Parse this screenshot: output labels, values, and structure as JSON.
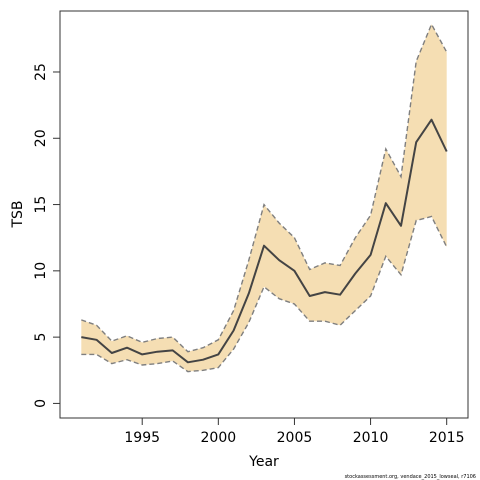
{
  "chart_data": {
    "type": "area",
    "title": "",
    "xlabel": "Year",
    "ylabel": "TSB",
    "xlim": [
      1989.6,
      2016.4
    ],
    "ylim": [
      -1.1,
      29.6
    ],
    "xticks": [
      1995,
      2000,
      2005,
      2010,
      2015
    ],
    "yticks": [
      0,
      5,
      10,
      15,
      20,
      25
    ],
    "grid": false,
    "legend": "none",
    "x": [
      1991,
      1992,
      1993,
      1994,
      1995,
      1996,
      1997,
      1998,
      1999,
      2000,
      2001,
      2002,
      2003,
      2004,
      2005,
      2006,
      2007,
      2008,
      2009,
      2010,
      2011,
      2012,
      2013,
      2014,
      2015
    ],
    "series": [
      {
        "role": "estimate",
        "values": [
          5.0,
          4.8,
          3.8,
          4.2,
          3.7,
          3.9,
          4.0,
          3.1,
          3.3,
          3.7,
          5.5,
          8.3,
          11.9,
          10.8,
          10.0,
          8.1,
          8.4,
          8.2,
          9.8,
          11.2,
          15.1,
          13.4,
          19.7,
          21.4,
          19.0
        ]
      },
      {
        "role": "upper",
        "values": [
          6.3,
          5.9,
          4.7,
          5.1,
          4.6,
          4.9,
          5.0,
          3.9,
          4.2,
          4.8,
          7.0,
          10.8,
          15.0,
          13.6,
          12.5,
          10.1,
          10.6,
          10.4,
          12.5,
          14.2,
          19.2,
          17.1,
          25.8,
          28.6,
          26.5
        ]
      },
      {
        "role": "lower",
        "values": [
          3.7,
          3.7,
          3.0,
          3.3,
          2.9,
          3.0,
          3.2,
          2.4,
          2.5,
          2.7,
          4.1,
          6.1,
          8.8,
          7.9,
          7.5,
          6.2,
          6.2,
          5.9,
          7.0,
          8.1,
          11.1,
          9.7,
          13.8,
          14.1,
          11.8
        ]
      }
    ],
    "colors": {
      "band": "#f5deb3",
      "line": "#444444",
      "bound": "#7f7f7f",
      "axis": "#333333"
    }
  },
  "credit": "stockassessment.org, vendace_2015_lowseal, r7106"
}
